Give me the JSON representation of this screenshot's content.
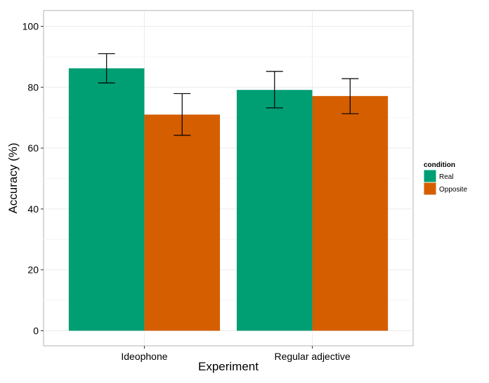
{
  "chart_data": {
    "type": "bar",
    "categories": [
      "Ideophone",
      "Regular adjective"
    ],
    "series": [
      {
        "name": "Real",
        "color": "#009E73",
        "values": [
          86.2,
          79.1
        ],
        "error_low": [
          81.4,
          73.2
        ],
        "error_high": [
          91.0,
          85.2
        ]
      },
      {
        "name": "Opposite",
        "color": "#D55E00",
        "values": [
          71.0,
          77.1
        ],
        "error_low": [
          64.2,
          71.3
        ],
        "error_high": [
          77.9,
          82.8
        ]
      }
    ],
    "xlabel": "Experiment",
    "ylabel": "Accuracy (%)",
    "ylim": [
      -5,
      105
    ],
    "yticks": [
      0,
      20,
      40,
      60,
      80,
      100
    ],
    "grid": true,
    "legend": {
      "title": "condition",
      "placement": "right"
    }
  }
}
